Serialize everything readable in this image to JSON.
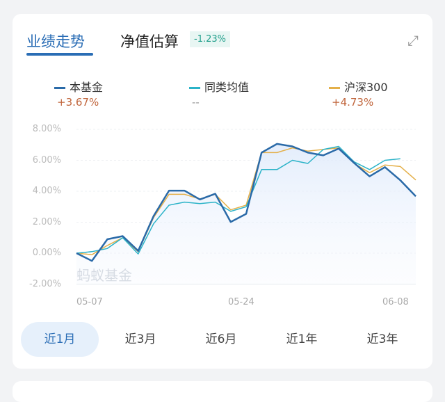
{
  "tabs": {
    "performance": "业绩走势",
    "nav_estimate": "净值估算",
    "nav_change": "-1.23%"
  },
  "legend": [
    {
      "name": "本基金",
      "value": "+3.67%",
      "color": "#2a6aa8"
    },
    {
      "name": "同类均值",
      "value": "--",
      "color": "#2bb3c8"
    },
    {
      "name": "沪深300",
      "value": "+4.73%",
      "color": "#e4b04a"
    }
  ],
  "watermark": "蚂蚁基金",
  "periods": [
    {
      "label": "近1月",
      "selected": true
    },
    {
      "label": "近3月"
    },
    {
      "label": "近6月"
    },
    {
      "label": "近1年"
    },
    {
      "label": "近3年"
    }
  ],
  "chart_data": {
    "type": "line",
    "ylim": [
      -2,
      8
    ],
    "yticks": [
      "8.00%",
      "6.00%",
      "4.00%",
      "2.00%",
      "0.00%",
      "-2.00%"
    ],
    "xticks": [
      "05-07",
      "05-24",
      "06-08"
    ],
    "grid": true,
    "series": [
      {
        "name": "本基金",
        "values": [
          0,
          -0.5,
          0.9,
          1.1,
          0.15,
          2.4,
          4.04,
          4.04,
          3.47,
          3.84,
          2.02,
          2.54,
          6.5,
          7.06,
          6.9,
          6.5,
          6.32,
          6.76,
          5.83,
          4.96,
          5.56,
          4.71,
          3.67
        ]
      },
      {
        "name": "同类均值",
        "values": [
          0,
          0.1,
          0.3,
          1.0,
          -0.05,
          1.9,
          3.1,
          3.3,
          3.2,
          3.3,
          2.7,
          3.0,
          5.4,
          5.4,
          6.0,
          5.8,
          6.7,
          6.9,
          5.9,
          5.4,
          6.0,
          6.1
        ]
      },
      {
        "name": "沪深300",
        "values": [
          0,
          -0.1,
          0.5,
          1.0,
          0.1,
          2.3,
          3.8,
          3.8,
          3.5,
          3.8,
          2.8,
          3.1,
          6.5,
          6.5,
          6.8,
          6.6,
          6.7,
          6.8,
          5.8,
          5.2,
          5.7,
          5.6,
          4.73
        ]
      }
    ]
  }
}
